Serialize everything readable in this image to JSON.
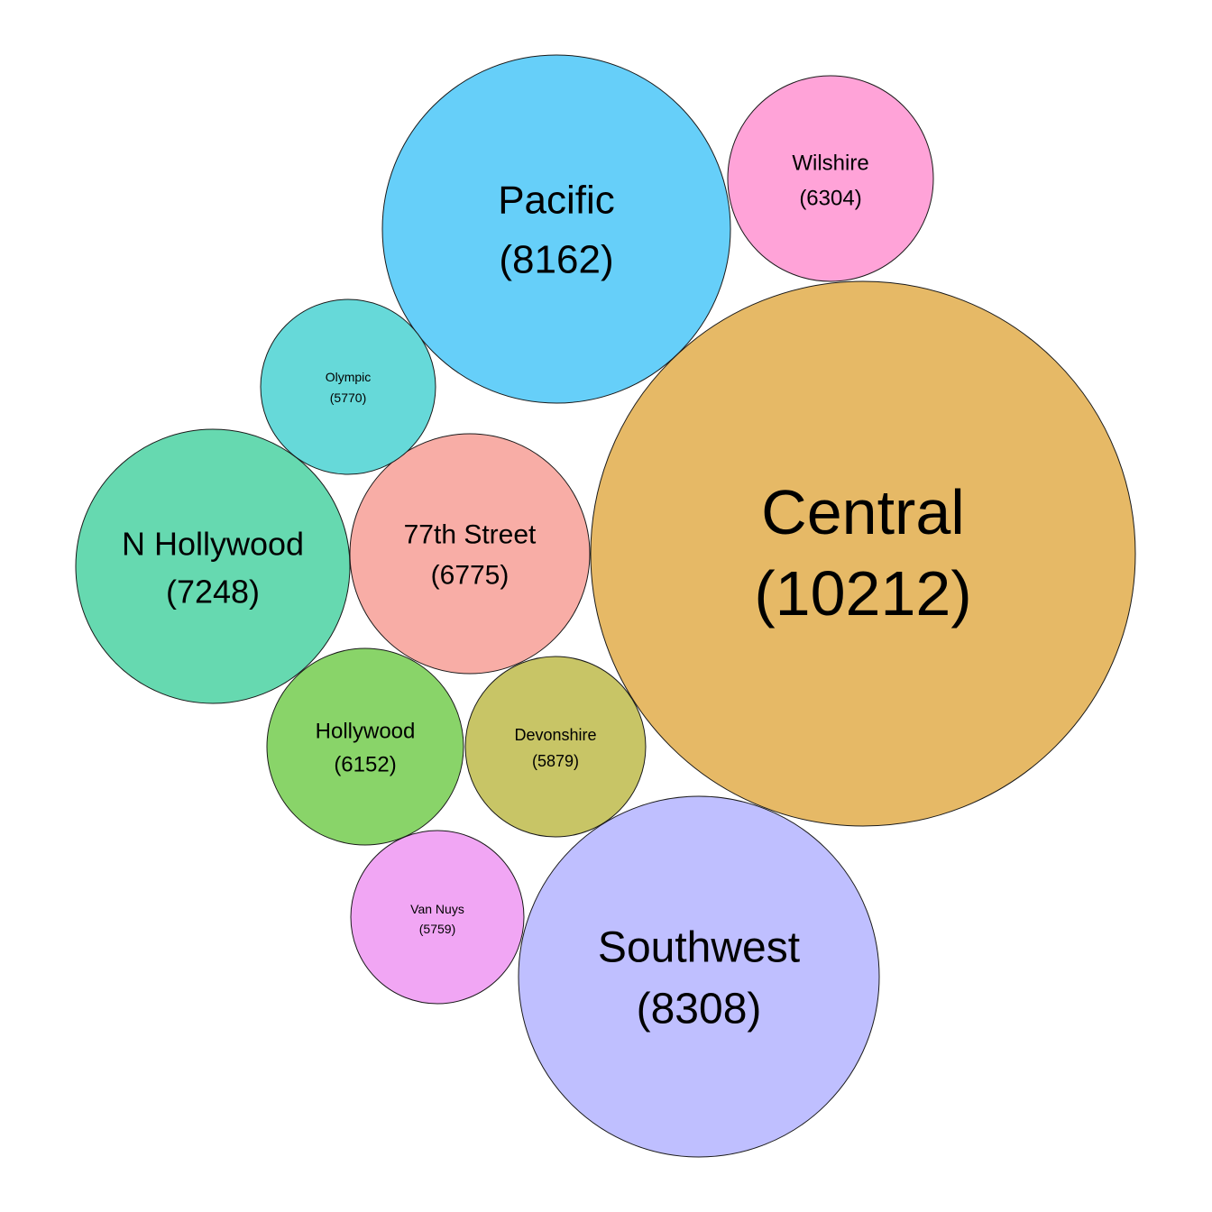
{
  "chart_data": {
    "type": "bubble",
    "title": "",
    "bubbles": [
      {
        "label": "Central",
        "value": 10212,
        "value_text": "(10212)",
        "color": "#E6B966"
      },
      {
        "label": "Southwest",
        "value": 8308,
        "value_text": "(8308)",
        "color": "#BFBFFF"
      },
      {
        "label": "Pacific",
        "value": 8162,
        "value_text": "(8162)",
        "color": "#66CFF9"
      },
      {
        "label": "N Hollywood",
        "value": 7248,
        "value_text": "(7248)",
        "color": "#66D9B0"
      },
      {
        "label": "77th Street",
        "value": 6775,
        "value_text": "(6775)",
        "color": "#F8ADA6"
      },
      {
        "label": "Wilshire",
        "value": 6304,
        "value_text": "(6304)",
        "color": "#FFA3D8"
      },
      {
        "label": "Hollywood",
        "value": 6152,
        "value_text": "(6152)",
        "color": "#89D469"
      },
      {
        "label": "Devonshire",
        "value": 5879,
        "value_text": "(5879)",
        "color": "#C8C566"
      },
      {
        "label": "Olympic",
        "value": 5770,
        "value_text": "(5770)",
        "color": "#66D9D9"
      },
      {
        "label": "Van Nuys",
        "value": 5759,
        "value_text": "(5759)",
        "color": "#F1A6F4"
      }
    ]
  }
}
